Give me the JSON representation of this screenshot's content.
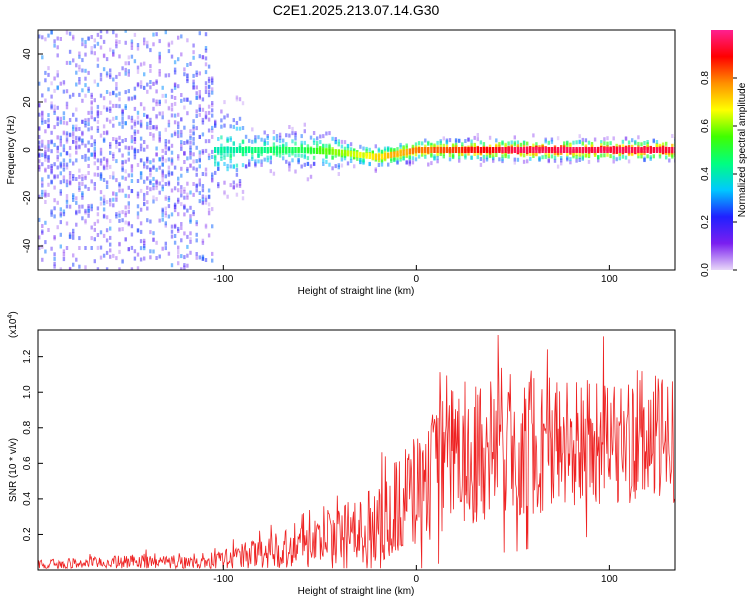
{
  "figure": {
    "title": "C2E1.2025.213.07.14.G30"
  },
  "chart_data": [
    {
      "type": "heatmap",
      "xlabel": "Height of straight line (km)",
      "ylabel": "Frequency (Hz)",
      "xlim": [
        -196,
        134
      ],
      "ylim": [
        -50,
        50
      ],
      "xticks": [
        -100,
        0,
        100
      ],
      "yticks": [
        -40,
        -20,
        0,
        20,
        40
      ],
      "grid": false,
      "colorbar": {
        "label": "Normalized spectral amplitude",
        "range": [
          0.0,
          1.0
        ],
        "ticks": [
          0.0,
          0.2,
          0.4,
          0.6,
          0.8
        ],
        "palette": [
          "#e8d8f8",
          "#7a1ff0",
          "#2020ff",
          "#00c8ff",
          "#00ff80",
          "#40ff00",
          "#ffff00",
          "#ff9000",
          "#ff0000",
          "#ff2090"
        ]
      },
      "ridge": [
        {
          "x": -196,
          "f": 0,
          "amp": 0.3
        },
        {
          "x": -105,
          "f": 0,
          "amp": 0.4
        },
        {
          "x": -60,
          "f": 0,
          "amp": 0.5
        },
        {
          "x": -40,
          "f": -1,
          "amp": 0.6
        },
        {
          "x": -20,
          "f": -3,
          "amp": 0.7
        },
        {
          "x": 0,
          "f": 0,
          "amp": 0.8
        },
        {
          "x": 50,
          "f": 0,
          "amp": 0.95
        },
        {
          "x": 134,
          "f": 0,
          "amp": 0.95
        }
      ]
    },
    {
      "type": "line",
      "xlabel": "Height of straight line (km)",
      "ylabel": "SNR (10 * v/v)",
      "yscale_label": "(x10",
      "yscale_exp": "4",
      "xlim": [
        -196,
        134
      ],
      "ylim": [
        0,
        13500
      ],
      "xticks": [
        -100,
        0,
        100
      ],
      "yticks": [
        2000,
        4000,
        6000,
        8000,
        10000,
        12000
      ],
      "ytick_labels": [
        "0.2",
        "0.4",
        "0.6",
        "0.8",
        "1.0",
        "1.2"
      ],
      "grid": false,
      "series": [
        {
          "color": "#ee2222",
          "envelope": [
            {
              "x": -196,
              "mean": 300,
              "amp": 250
            },
            {
              "x": -140,
              "mean": 500,
              "amp": 400
            },
            {
              "x": -110,
              "mean": 400,
              "amp": 350
            },
            {
              "x": -80,
              "mean": 1000,
              "amp": 900
            },
            {
              "x": -50,
              "mean": 1600,
              "amp": 1500
            },
            {
              "x": -20,
              "mean": 2600,
              "amp": 2200
            },
            {
              "x": 0,
              "mean": 4500,
              "amp": 3500
            },
            {
              "x": 20,
              "mean": 6500,
              "amp": 4000
            },
            {
              "x": 50,
              "mean": 7300,
              "amp": 4500
            },
            {
              "x": 80,
              "mean": 7000,
              "amp": 3800
            },
            {
              "x": 110,
              "mean": 7200,
              "amp": 3500
            },
            {
              "x": 134,
              "mean": 7300,
              "amp": 3800
            }
          ]
        }
      ]
    }
  ]
}
